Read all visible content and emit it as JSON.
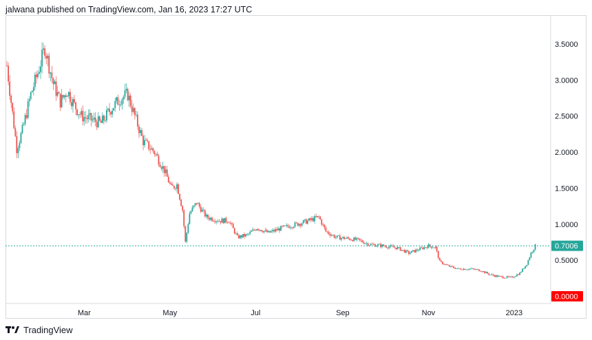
{
  "header": {
    "text": "jalwana published on TradingView.com, Jan 16, 2023 17:27 UTC"
  },
  "footer": {
    "brand_label": "TradingView",
    "logo_icon": "tradingview-logo-icon"
  },
  "colors": {
    "up": "#26a69a",
    "down": "#ef5350",
    "price_line": "#26a69a",
    "zero_badge": "#ff0000",
    "grid": "#e0e3eb",
    "text": "#131722"
  },
  "chart_data": {
    "type": "candlestick",
    "title": "",
    "xlabel": "",
    "ylabel": "",
    "x_ticks": [
      "Mar",
      "May",
      "Jul",
      "Sep",
      "Nov",
      "2023"
    ],
    "y_ticks": [
      "3.5000",
      "3.0000",
      "2.5000",
      "2.0000",
      "1.5000",
      "1.0000",
      "0.5000"
    ],
    "ylim": [
      -0.1,
      3.9
    ],
    "current_price_label": "0.7006",
    "zero_label": "0.0000",
    "x_range": [
      "2022-01-04",
      "2023-01-27"
    ],
    "trend_points": [
      [
        "2022-01-05",
        3.2
      ],
      [
        "2022-01-08",
        2.7
      ],
      [
        "2022-01-12",
        2.05
      ],
      [
        "2022-01-16",
        2.3
      ],
      [
        "2022-01-22",
        2.8
      ],
      [
        "2022-01-27",
        3.1
      ],
      [
        "2022-02-01",
        3.45
      ],
      [
        "2022-02-07",
        2.95
      ],
      [
        "2022-02-12",
        2.7
      ],
      [
        "2022-02-17",
        2.85
      ],
      [
        "2022-02-22",
        2.65
      ],
      [
        "2022-02-27",
        2.5
      ],
      [
        "2022-03-06",
        2.45
      ],
      [
        "2022-03-13",
        2.4
      ],
      [
        "2022-03-20",
        2.6
      ],
      [
        "2022-03-27",
        2.75
      ],
      [
        "2022-04-01",
        2.8
      ],
      [
        "2022-04-06",
        2.5
      ],
      [
        "2022-04-12",
        2.15
      ],
      [
        "2022-04-20",
        2.0
      ],
      [
        "2022-04-27",
        1.75
      ],
      [
        "2022-05-02",
        1.5
      ],
      [
        "2022-05-06",
        1.55
      ],
      [
        "2022-05-10",
        1.2
      ],
      [
        "2022-05-12",
        0.75
      ],
      [
        "2022-05-15",
        1.15
      ],
      [
        "2022-05-20",
        1.3
      ],
      [
        "2022-05-27",
        1.1
      ],
      [
        "2022-06-05",
        1.05
      ],
      [
        "2022-06-12",
        1.05
      ],
      [
        "2022-06-18",
        0.82
      ],
      [
        "2022-06-25",
        0.85
      ],
      [
        "2022-07-02",
        0.95
      ],
      [
        "2022-07-10",
        0.88
      ],
      [
        "2022-07-20",
        0.95
      ],
      [
        "2022-07-30",
        1.0
      ],
      [
        "2022-08-08",
        1.05
      ],
      [
        "2022-08-15",
        1.1
      ],
      [
        "2022-08-20",
        0.9
      ],
      [
        "2022-08-27",
        0.82
      ],
      [
        "2022-09-05",
        0.8
      ],
      [
        "2022-09-12",
        0.78
      ],
      [
        "2022-09-20",
        0.72
      ],
      [
        "2022-09-30",
        0.7
      ],
      [
        "2022-10-10",
        0.67
      ],
      [
        "2022-10-18",
        0.6
      ],
      [
        "2022-10-25",
        0.65
      ],
      [
        "2022-11-01",
        0.7
      ],
      [
        "2022-11-06",
        0.68
      ],
      [
        "2022-11-09",
        0.48
      ],
      [
        "2022-11-15",
        0.42
      ],
      [
        "2022-11-22",
        0.38
      ],
      [
        "2022-12-01",
        0.38
      ],
      [
        "2022-12-08",
        0.36
      ],
      [
        "2022-12-15",
        0.3
      ],
      [
        "2022-12-22",
        0.27
      ],
      [
        "2022-12-30",
        0.26
      ],
      [
        "2023-01-05",
        0.32
      ],
      [
        "2023-01-10",
        0.45
      ],
      [
        "2023-01-13",
        0.6
      ],
      [
        "2023-01-16",
        0.7
      ]
    ]
  }
}
